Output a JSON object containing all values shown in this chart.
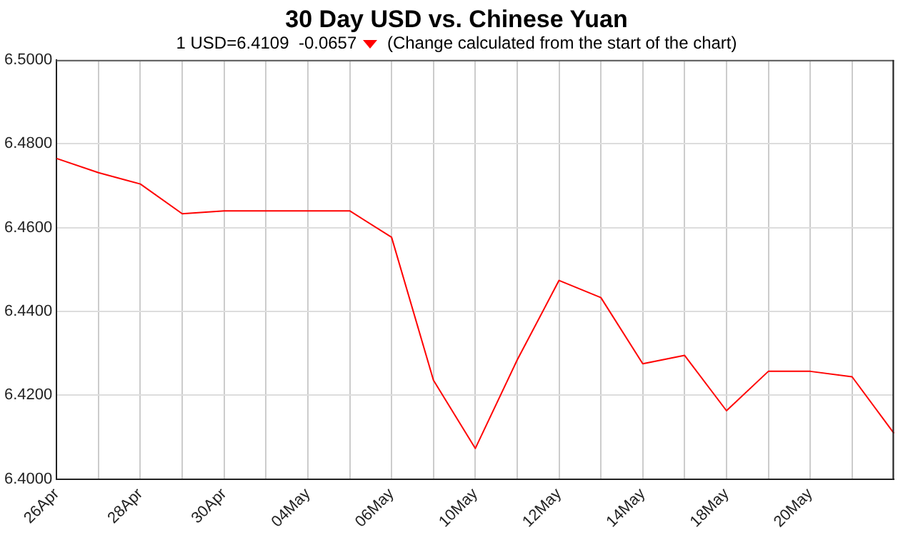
{
  "chart_data": {
    "type": "line",
    "title": "30 Day USD vs. Chinese Yuan",
    "subtitle": "1 USD=6.4109  -0.0657",
    "annotations": [
      "(Change calculated from the start of the chart)"
    ],
    "categories": [
      "26Apr",
      null,
      "28Apr",
      null,
      "30Apr",
      null,
      "04May",
      null,
      "06May",
      null,
      "10May",
      null,
      "12May",
      null,
      "14May",
      null,
      "18May",
      null,
      "20May",
      null,
      null
    ],
    "series": [
      {
        "color": "#ff0000",
        "values": [
          6.4765,
          6.4731,
          6.4704,
          6.4633,
          6.464,
          6.464,
          6.464,
          6.464,
          6.4577,
          6.4236,
          6.4073,
          6.4284,
          6.4474,
          6.4433,
          6.4275,
          6.4295,
          6.4163,
          6.4257,
          6.4257,
          6.4244,
          6.4109
        ]
      }
    ],
    "ylim": [
      6.4,
      6.5
    ],
    "yticks": [
      {
        "value": 6.4,
        "label": "6.4000"
      },
      {
        "value": 6.42,
        "label": "6.4200"
      },
      {
        "value": 6.44,
        "label": "6.4400"
      },
      {
        "value": 6.46,
        "label": "6.4600"
      },
      {
        "value": 6.48,
        "label": "6.4800"
      },
      {
        "value": 6.5,
        "label": "6.5000"
      }
    ],
    "grid": true,
    "legend": false,
    "marker": "none",
    "line_style": "solid"
  }
}
